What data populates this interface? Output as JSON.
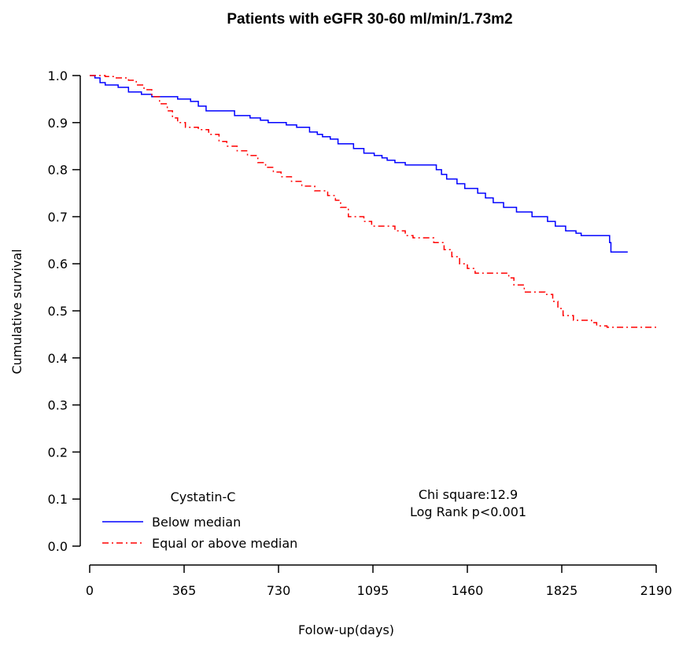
{
  "chart_data": {
    "type": "line",
    "title": "Patients with eGFR 30-60 ml/min/1.73m2",
    "xlabel": "Folow-up(days)",
    "ylabel": "Cumulative survival",
    "xlim": [
      0,
      2190
    ],
    "ylim": [
      0,
      1.0
    ],
    "x_ticks": [
      0,
      365,
      730,
      1095,
      1460,
      1825,
      2190
    ],
    "x_tick_labels": [
      "0",
      "365",
      "730",
      "1095",
      "1460",
      "1825",
      "2190"
    ],
    "y_ticks": [
      0.0,
      0.1,
      0.2,
      0.3,
      0.4,
      0.5,
      0.6,
      0.7,
      0.8,
      0.9,
      1.0
    ],
    "y_tick_labels": [
      "0.0",
      "0.1",
      "0.2",
      "0.3",
      "0.4",
      "0.5",
      "0.6",
      "0.7",
      "0.8",
      "0.9",
      "1.0"
    ],
    "grid": false,
    "legend": {
      "title": "Cystatin-C",
      "position": "bottom-left"
    },
    "annotations": [
      "Chi square:12.9",
      "Log Rank p<0.001"
    ],
    "series": [
      {
        "name": "Below median",
        "color": "#0000ff",
        "style": "solid",
        "step": true,
        "points": [
          [
            0,
            1.0
          ],
          [
            20,
            0.995
          ],
          [
            40,
            0.985
          ],
          [
            60,
            0.98
          ],
          [
            110,
            0.975
          ],
          [
            150,
            0.965
          ],
          [
            200,
            0.96
          ],
          [
            240,
            0.955
          ],
          [
            340,
            0.95
          ],
          [
            390,
            0.945
          ],
          [
            420,
            0.935
          ],
          [
            450,
            0.925
          ],
          [
            560,
            0.915
          ],
          [
            620,
            0.91
          ],
          [
            660,
            0.905
          ],
          [
            690,
            0.9
          ],
          [
            760,
            0.895
          ],
          [
            800,
            0.89
          ],
          [
            850,
            0.88
          ],
          [
            880,
            0.875
          ],
          [
            900,
            0.87
          ],
          [
            930,
            0.865
          ],
          [
            960,
            0.855
          ],
          [
            1020,
            0.845
          ],
          [
            1060,
            0.835
          ],
          [
            1100,
            0.83
          ],
          [
            1130,
            0.825
          ],
          [
            1150,
            0.82
          ],
          [
            1180,
            0.815
          ],
          [
            1220,
            0.81
          ],
          [
            1340,
            0.8
          ],
          [
            1360,
            0.79
          ],
          [
            1380,
            0.78
          ],
          [
            1420,
            0.77
          ],
          [
            1450,
            0.76
          ],
          [
            1500,
            0.75
          ],
          [
            1530,
            0.74
          ],
          [
            1560,
            0.73
          ],
          [
            1600,
            0.72
          ],
          [
            1650,
            0.71
          ],
          [
            1710,
            0.7
          ],
          [
            1770,
            0.69
          ],
          [
            1800,
            0.68
          ],
          [
            1840,
            0.67
          ],
          [
            1880,
            0.665
          ],
          [
            1900,
            0.66
          ],
          [
            2010,
            0.645
          ],
          [
            2015,
            0.625
          ],
          [
            2080,
            0.625
          ]
        ]
      },
      {
        "name": "Equal or above median",
        "color": "#ff0000",
        "style": "dashdot",
        "step": true,
        "points": [
          [
            0,
            1.0
          ],
          [
            60,
            0.998
          ],
          [
            100,
            0.995
          ],
          [
            150,
            0.99
          ],
          [
            180,
            0.98
          ],
          [
            210,
            0.97
          ],
          [
            240,
            0.955
          ],
          [
            270,
            0.94
          ],
          [
            300,
            0.925
          ],
          [
            320,
            0.91
          ],
          [
            340,
            0.9
          ],
          [
            370,
            0.89
          ],
          [
            420,
            0.885
          ],
          [
            460,
            0.875
          ],
          [
            500,
            0.86
          ],
          [
            530,
            0.85
          ],
          [
            570,
            0.84
          ],
          [
            610,
            0.83
          ],
          [
            650,
            0.815
          ],
          [
            680,
            0.805
          ],
          [
            710,
            0.795
          ],
          [
            740,
            0.785
          ],
          [
            780,
            0.775
          ],
          [
            820,
            0.765
          ],
          [
            870,
            0.755
          ],
          [
            920,
            0.745
          ],
          [
            950,
            0.735
          ],
          [
            970,
            0.72
          ],
          [
            1000,
            0.7
          ],
          [
            1060,
            0.69
          ],
          [
            1090,
            0.68
          ],
          [
            1180,
            0.67
          ],
          [
            1220,
            0.66
          ],
          [
            1250,
            0.655
          ],
          [
            1330,
            0.645
          ],
          [
            1370,
            0.63
          ],
          [
            1400,
            0.615
          ],
          [
            1430,
            0.6
          ],
          [
            1460,
            0.59
          ],
          [
            1490,
            0.58
          ],
          [
            1620,
            0.57
          ],
          [
            1640,
            0.555
          ],
          [
            1680,
            0.54
          ],
          [
            1760,
            0.535
          ],
          [
            1790,
            0.52
          ],
          [
            1810,
            0.505
          ],
          [
            1830,
            0.49
          ],
          [
            1870,
            0.48
          ],
          [
            1940,
            0.475
          ],
          [
            1960,
            0.468
          ],
          [
            2000,
            0.465
          ],
          [
            2190,
            0.465
          ]
        ]
      }
    ]
  }
}
